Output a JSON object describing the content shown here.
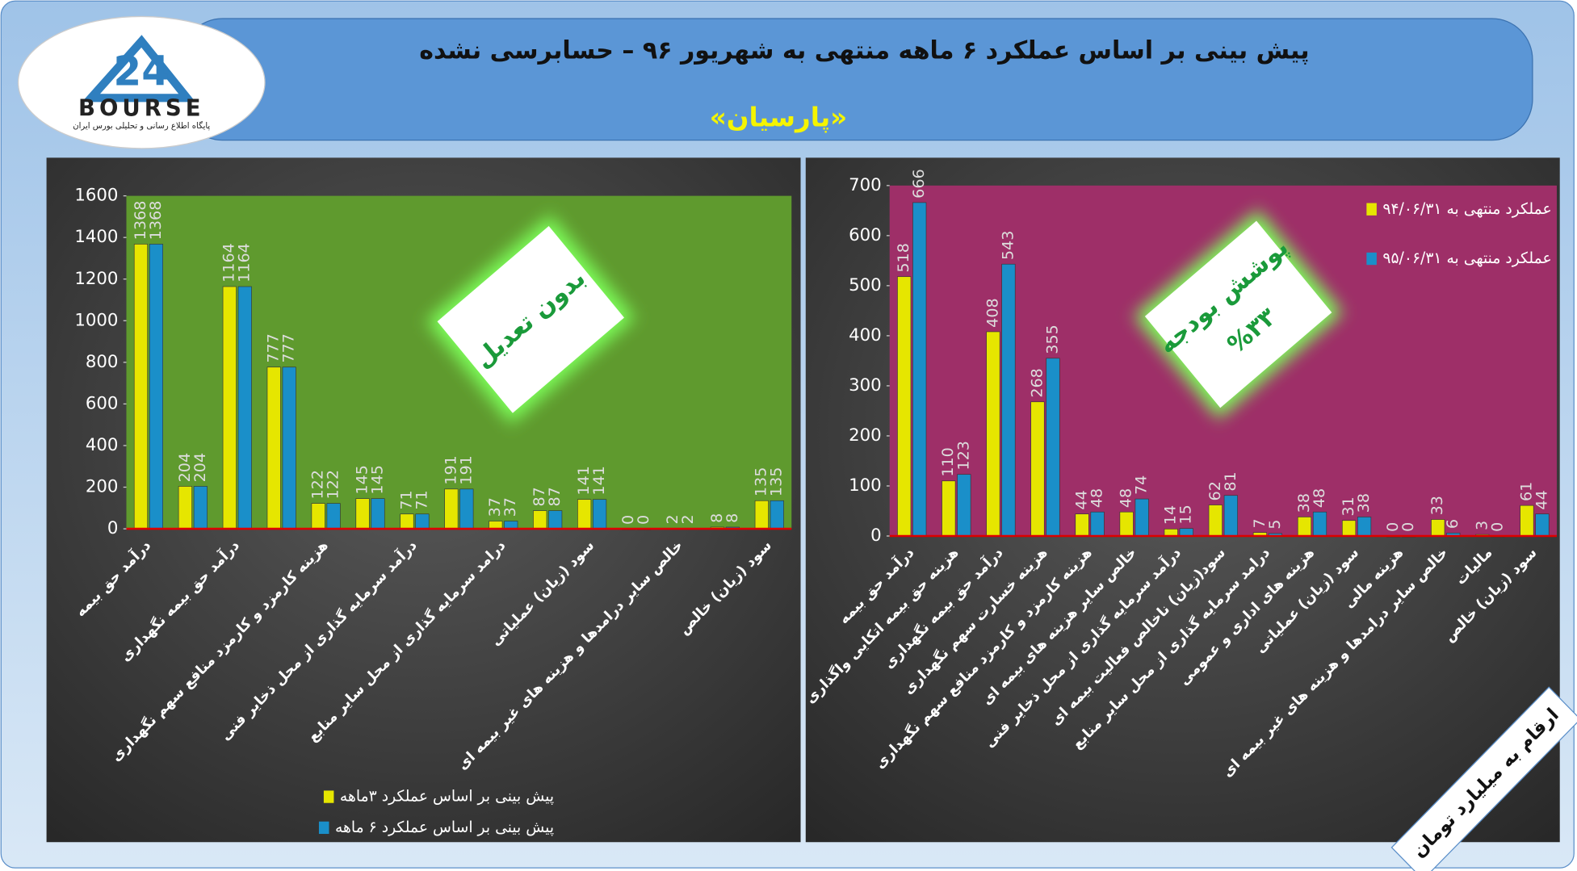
{
  "header": {
    "title": "پیش بینی بر اساس عملکرد ۶ ماهه منتهی به شهریور ۹۶ – حسابرسی نشده",
    "subtitle": "«پارسیان»"
  },
  "logo": {
    "number": "24",
    "name": "BOURSE",
    "tagline": "پایگاه اطلاع رسانی و تحلیلی بورس ایران"
  },
  "note": "ارقام به میلیارد تومان",
  "chart_data": [
    {
      "type": "bar",
      "annotation": [
        "بدون تعدیل"
      ],
      "categories": [
        "درآمد حق بیمه",
        null,
        "درآمد حق بیمه نگهداری",
        null,
        "هزینه کارمزد و کارمزد منافع سهم نگهداری",
        null,
        "درآمد سرمایه گذاری از محل ذخایر فنی",
        null,
        "درامد سرمایه گذاری از محل سایر منابع",
        null,
        "سود (زیان) عملیاتی",
        null,
        "خالص سایر درامدها و هزینه های غیر بیمه ای",
        null,
        "سود (زیان) خالص"
      ],
      "series": [
        {
          "name": "پیش بینی بر اساس عملکرد ۳ماهه",
          "color": "#e6e600",
          "values": [
            1368,
            204,
            1164,
            777,
            122,
            145,
            71,
            191,
            37,
            87,
            141,
            0,
            2,
            8,
            135
          ]
        },
        {
          "name": "پیش بینی بر اساس عملکرد ۶ ماهه",
          "color": "#1a8fc9",
          "values": [
            1368,
            204,
            1164,
            777,
            122,
            145,
            71,
            191,
            37,
            87,
            141,
            0,
            2,
            8,
            135
          ]
        }
      ],
      "ylim": [
        0,
        1600
      ],
      "yticks": [
        0,
        200,
        400,
        600,
        800,
        1000,
        1200,
        1400,
        1600
      ],
      "legend": "bottom",
      "background": "#5f9a2e"
    },
    {
      "type": "bar",
      "annotation": [
        "پوشش بودجه",
        "%۳۳"
      ],
      "categories": [
        "درآمد حق بیمه",
        "هزینه حق بیمه اتکایی واگذاری",
        "درآمد حق بیمه نگهداری",
        "هزینه خسارت سهم نگهداری",
        "هزینه کارمزد و کارمزد منافع سهم نگهداری",
        "خالص سایر هزینه های بیمه ای",
        "درآمد سرمایه گذاری از محل ذخایر فنی",
        "سود(زیان) ناخالص فعالیت بیمه ای",
        "درامد سرمایه گذاری از محل سایر منابع",
        "هزینه های اداری و عمومی",
        "سود (زیان) عملیاتی",
        "هزینه مالی",
        "خالص سایر درامدها و هزینه های غیر بیمه ای",
        "مالیات",
        "سود (زیان) خالص"
      ],
      "series": [
        {
          "name": "عملکرد منتهی به ۹۴/۰۶/۳۱",
          "color": "#e6e600",
          "values": [
            518,
            110,
            408,
            268,
            44,
            48,
            14,
            62,
            7,
            38,
            31,
            0,
            33,
            3,
            61
          ]
        },
        {
          "name": "عملکرد منتهی به ۹۵/۰۶/۳۱",
          "color": "#1a8fc9",
          "values": [
            666,
            123,
            543,
            355,
            48,
            74,
            15,
            81,
            5,
            48,
            38,
            0,
            6,
            0,
            44
          ]
        }
      ],
      "ylim": [
        0,
        700
      ],
      "yticks": [
        0,
        100,
        200,
        300,
        400,
        500,
        600,
        700
      ],
      "legend": "top-right",
      "background": "#9e2f68"
    }
  ]
}
